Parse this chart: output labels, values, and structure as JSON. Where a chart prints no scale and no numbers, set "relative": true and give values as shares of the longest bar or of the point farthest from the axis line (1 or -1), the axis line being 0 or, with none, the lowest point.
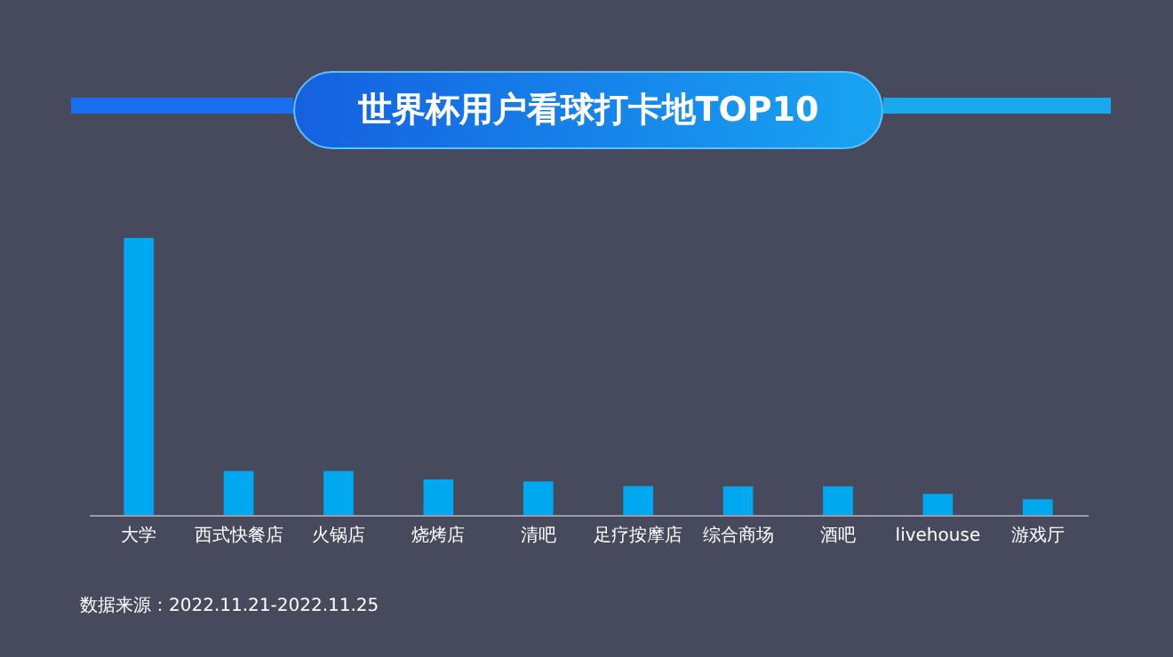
{
  "chart_data": {
    "type": "bar",
    "title": "世界杯用户看球打卡地TOP10",
    "categories": [
      "大学",
      "西式快餐店",
      "火锅店",
      "烧烤店",
      "清吧",
      "足疗按摩店",
      "综合商场",
      "酒吧",
      "livehouse",
      "游戏厅"
    ],
    "values": [
      1,
      0.159,
      0.159,
      0.128,
      0.121,
      0.104,
      0.103,
      0.103,
      0.076,
      0.057
    ],
    "color": "#00a8f0",
    "relative": true,
    "annotations": [
      "数据来源：2022.11.21-2022.11.25"
    ]
  }
}
